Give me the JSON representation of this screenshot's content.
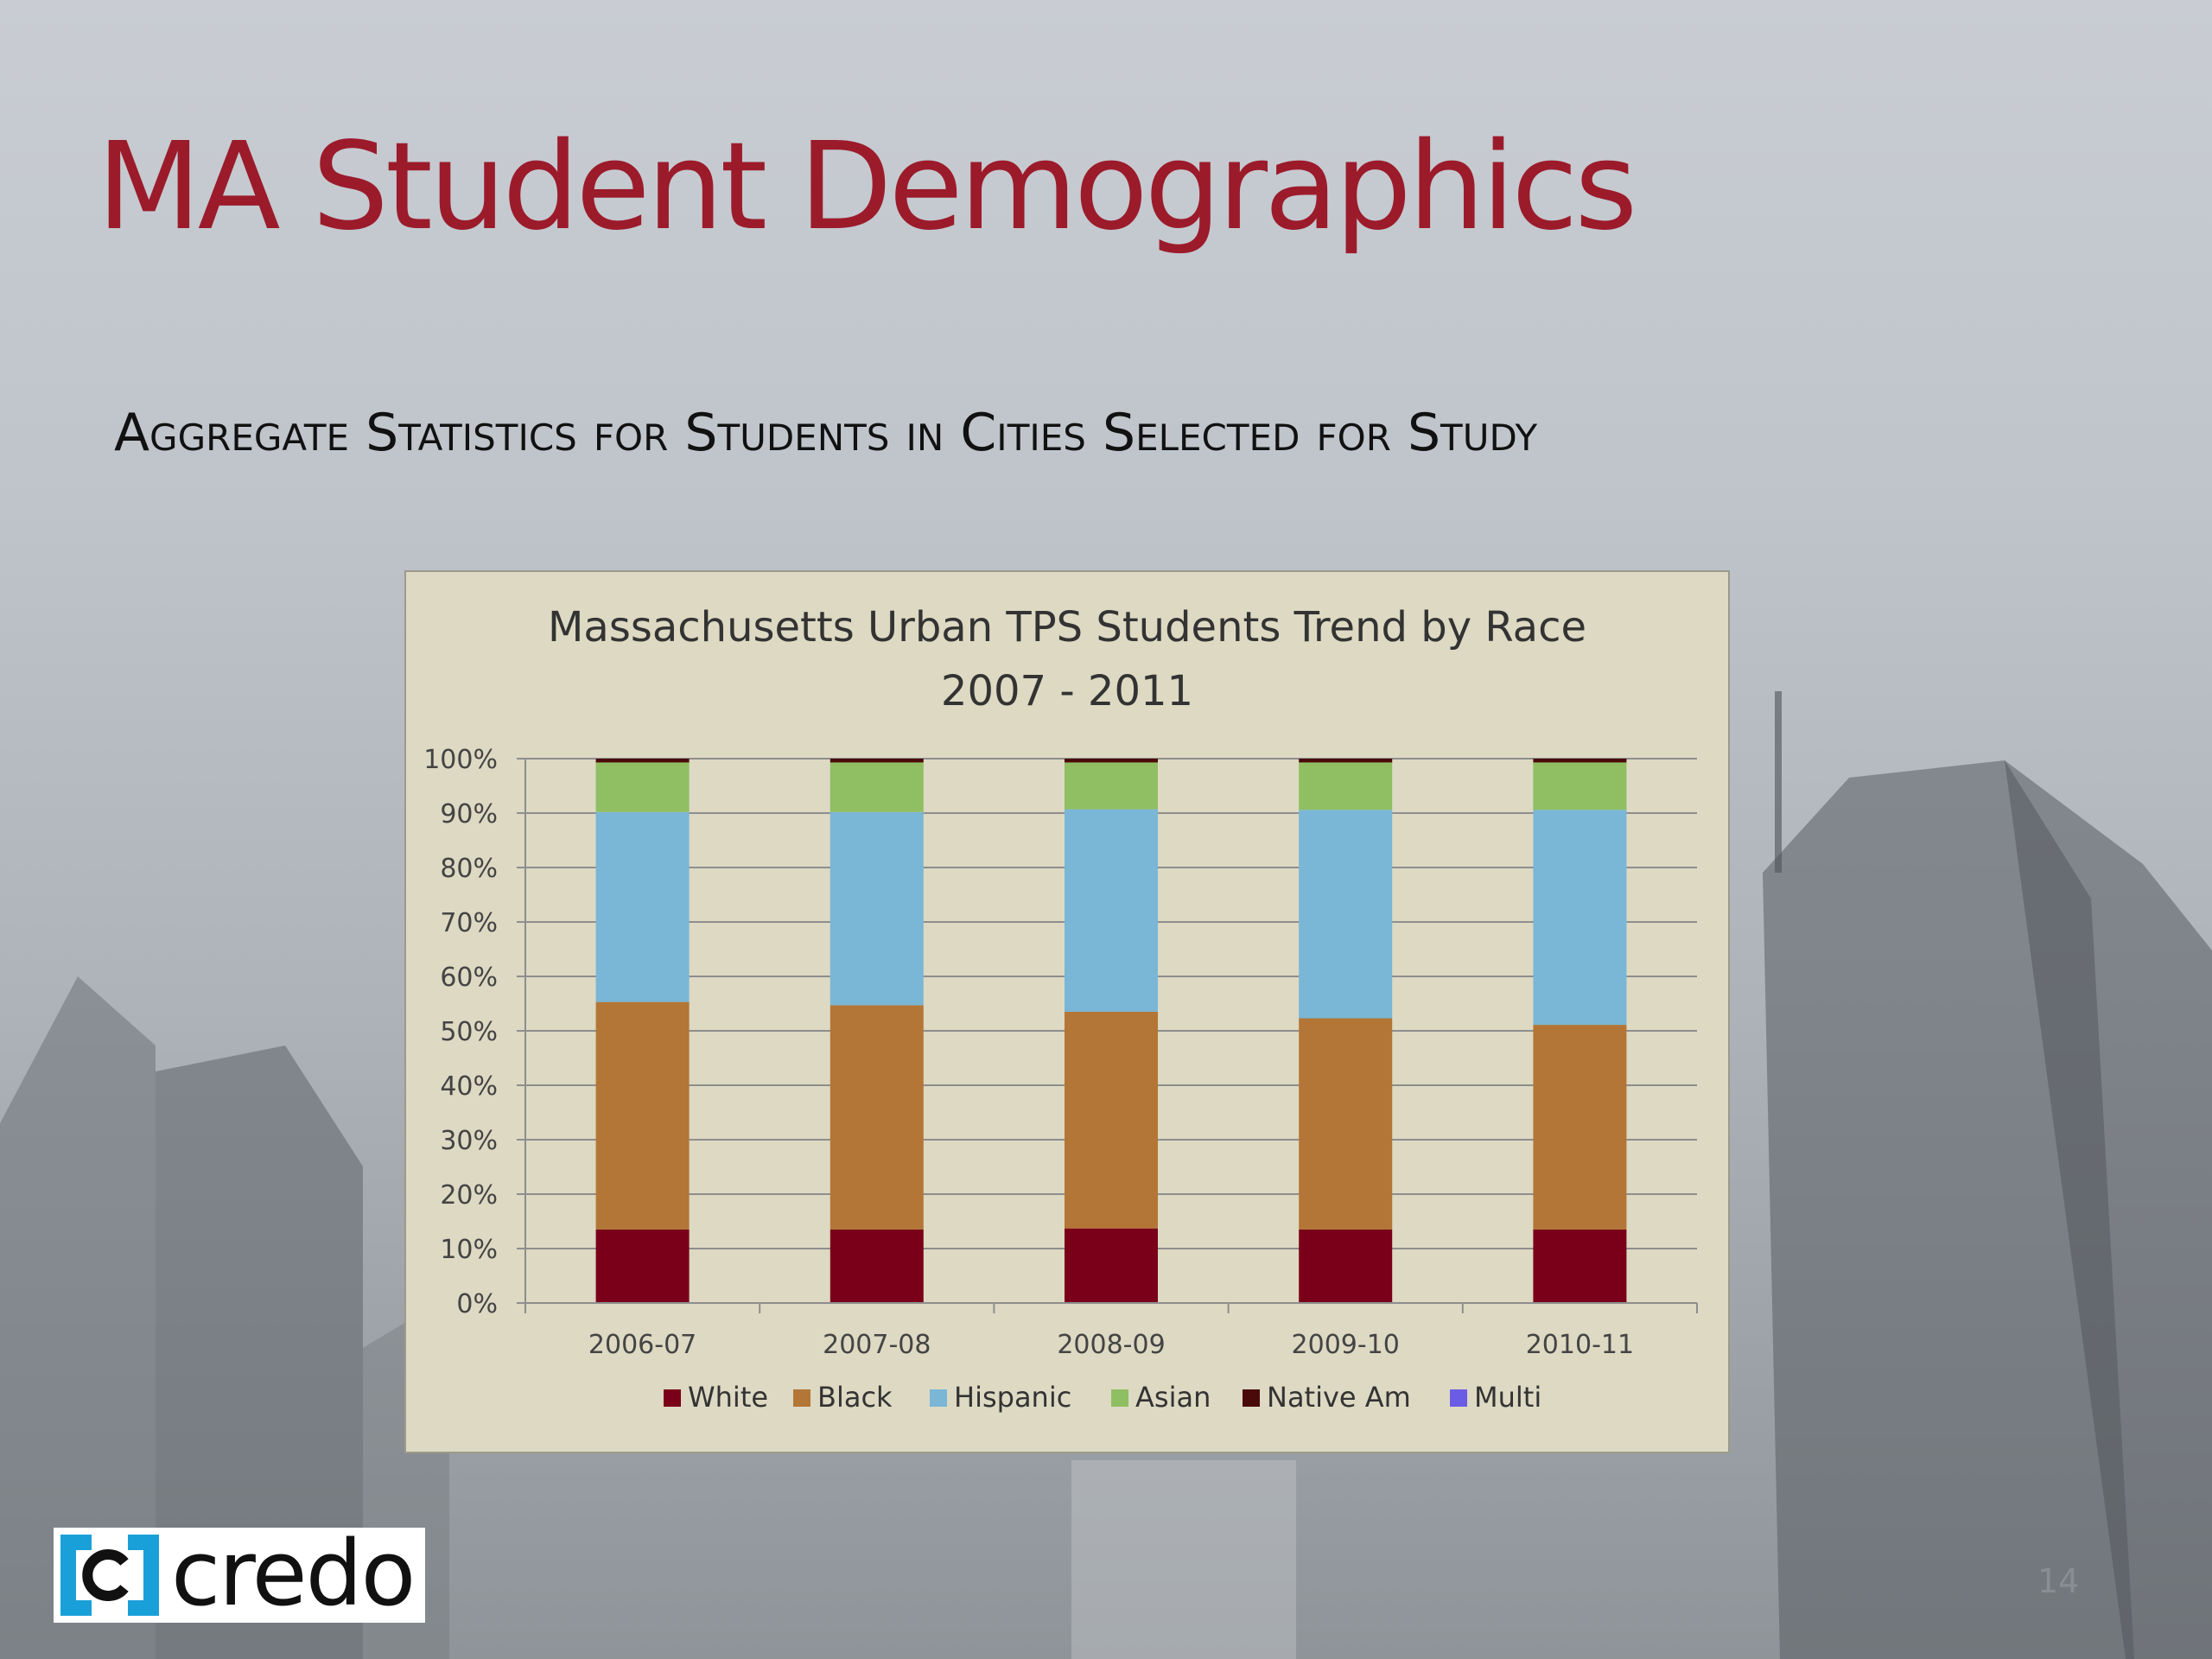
{
  "slide": {
    "title": "MA Student Demographics",
    "subtitle": "Aggregate Statistics for Students in Cities Selected for Study",
    "page_number": "14",
    "logo_text": "credo"
  },
  "colors": {
    "title": "#9b1b2b",
    "White": "#7a0019",
    "Black": "#b37636",
    "Hispanic": "#7ab6d6",
    "Asian": "#8fbf62",
    "Native Am": "#4a0a0a",
    "Multi": "#6b5ce6",
    "logo_accent": "#1aa0d8"
  },
  "chart_data": {
    "type": "bar",
    "stacked": true,
    "title_lines": [
      "Massachusetts Urban TPS Students Trend by Race",
      "2007 - 2011"
    ],
    "categories": [
      "2006-07",
      "2007-08",
      "2008-09",
      "2009-10",
      "2010-11"
    ],
    "series": [
      {
        "name": "White",
        "values": [
          13.5,
          13.5,
          13.7,
          13.5,
          13.5
        ]
      },
      {
        "name": "Black",
        "values": [
          41.8,
          41.2,
          39.8,
          38.8,
          37.6
        ]
      },
      {
        "name": "Hispanic",
        "values": [
          34.9,
          35.5,
          37.2,
          38.3,
          39.5
        ]
      },
      {
        "name": "Asian",
        "values": [
          9.1,
          9.1,
          8.6,
          8.7,
          8.7
        ]
      },
      {
        "name": "Native Am",
        "values": [
          0.7,
          0.7,
          0.7,
          0.7,
          0.7
        ]
      },
      {
        "name": "Multi",
        "values": [
          0,
          0,
          0,
          0,
          0
        ]
      }
    ],
    "y_ticks": [
      "0%",
      "10%",
      "20%",
      "30%",
      "40%",
      "50%",
      "60%",
      "70%",
      "80%",
      "90%",
      "100%"
    ],
    "ylim": [
      0,
      100
    ],
    "grid": true,
    "legend": "bottom"
  }
}
